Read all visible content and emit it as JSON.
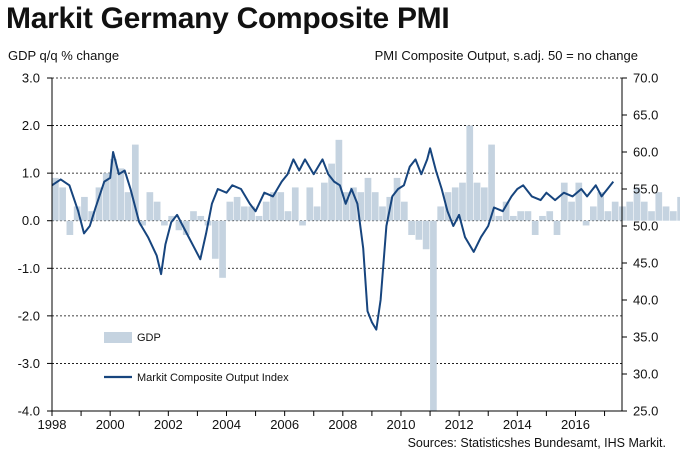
{
  "chart_data": {
    "type": "bar+line",
    "title": "Markit Germany Composite PMI",
    "ylabel_left": "GDP q/q % change",
    "ylabel_right": "PMI Composite  Output, s.adj. 50 = no change",
    "source": "Sources: Statisticshes Bundesamt, IHS Markit.",
    "xlim": [
      1998,
      2017.6
    ],
    "ylim_left": [
      -4.0,
      3.0
    ],
    "ylim_right": [
      25.0,
      70.0
    ],
    "x_ticks": [
      "1998",
      "2000",
      "2002",
      "2004",
      "2006",
      "2008",
      "2010",
      "2012",
      "2014",
      "2016"
    ],
    "y_ticks_left": [
      "3.0",
      "2.0",
      "1.0",
      "0.0",
      "-1.0",
      "-2.0",
      "-3.0",
      "-4.0"
    ],
    "y_ticks_right": [
      "70.0",
      "65.0",
      "60.0",
      "55.0",
      "50.0",
      "45.0",
      "40.0",
      "35.0",
      "30.0",
      "25.0"
    ],
    "grid": "horizontal dashed",
    "legend_position": "bottom-left",
    "colors": {
      "gdp_bar": "#c5d3e0",
      "pmi_line": "#17457e",
      "axis": "#000000"
    },
    "series": [
      {
        "name": "GDP",
        "kind": "bar",
        "axis": "left",
        "x_start": 1998.0,
        "step": 0.25,
        "values": [
          0.9,
          0.7,
          -0.3,
          0.3,
          0.5,
          0.2,
          0.7,
          1.0,
          1.3,
          1.1,
          0.6,
          1.6,
          -0.1,
          0.6,
          0.4,
          -0.1,
          0.1,
          -0.2,
          -0.3,
          0.2,
          0.1,
          -0.1,
          -0.8,
          -1.2,
          0.4,
          0.5,
          0.3,
          0.3,
          0.1,
          0.4,
          0.6,
          0.6,
          0.2,
          0.7,
          -0.1,
          0.7,
          0.3,
          0.8,
          1.2,
          1.7,
          0.6,
          0.7,
          0.6,
          0.9,
          0.6,
          0.3,
          0.5,
          0.9,
          0.4,
          -0.3,
          -0.4,
          -0.6,
          -4.0,
          0.3,
          0.6,
          0.7,
          0.8,
          2.0,
          0.8,
          0.7,
          1.6,
          0.1,
          0.4,
          0.1,
          0.2,
          0.2,
          -0.3,
          0.1,
          0.2,
          -0.3,
          0.8,
          0.4,
          0.8,
          -0.1,
          0.3,
          0.6,
          0.2,
          0.4,
          0.3,
          0.4,
          0.7,
          0.4,
          0.2,
          0.6,
          0.3,
          0.2,
          0.5,
          0.4
        ]
      },
      {
        "name": "Markit Composite Output Index",
        "kind": "line",
        "axis": "right",
        "x": [
          1998.0,
          1998.3,
          1998.6,
          1998.9,
          1999.1,
          1999.3,
          1999.5,
          1999.8,
          2000.0,
          2000.1,
          2000.3,
          2000.5,
          2000.7,
          2001.0,
          2001.3,
          2001.6,
          2001.75,
          2001.9,
          2002.1,
          2002.3,
          2002.5,
          2002.7,
          2002.9,
          2003.1,
          2003.3,
          2003.5,
          2003.7,
          2004.0,
          2004.2,
          2004.5,
          2004.8,
          2005.0,
          2005.3,
          2005.6,
          2005.9,
          2006.1,
          2006.3,
          2006.5,
          2006.7,
          2007.0,
          2007.3,
          2007.5,
          2007.7,
          2007.9,
          2008.1,
          2008.3,
          2008.5,
          2008.7,
          2008.85,
          2009.0,
          2009.15,
          2009.3,
          2009.5,
          2009.7,
          2009.9,
          2010.1,
          2010.3,
          2010.5,
          2010.7,
          2010.9,
          2011.0,
          2011.2,
          2011.4,
          2011.6,
          2011.8,
          2012.0,
          2012.2,
          2012.5,
          2012.75,
          2013.0,
          2013.2,
          2013.5,
          2013.8,
          2014.0,
          2014.2,
          2014.5,
          2014.8,
          2015.0,
          2015.3,
          2015.6,
          2015.9,
          2016.2,
          2016.4,
          2016.7,
          2016.9,
          2017.1,
          2017.3
        ],
        "values": [
          55.5,
          56.3,
          55.5,
          52.0,
          49.0,
          50.0,
          52.5,
          56.0,
          56.5,
          60.0,
          57.0,
          57.5,
          55.0,
          50.5,
          48.5,
          46.0,
          43.5,
          47.5,
          50.5,
          51.5,
          50.0,
          48.5,
          47.0,
          45.5,
          49.0,
          53.0,
          55.0,
          54.5,
          55.5,
          55.0,
          53.0,
          52.0,
          54.5,
          54.0,
          56.0,
          57.0,
          59.0,
          57.5,
          59.0,
          57.0,
          59.0,
          57.0,
          56.0,
          55.5,
          53.0,
          55.0,
          53.0,
          47.0,
          38.5,
          37.0,
          36.0,
          40.0,
          50.0,
          54.0,
          55.0,
          55.5,
          58.0,
          59.0,
          57.0,
          59.0,
          60.5,
          57.5,
          55.0,
          52.0,
          50.0,
          51.5,
          48.5,
          46.5,
          48.5,
          50.0,
          52.5,
          52.0,
          54.0,
          55.0,
          55.5,
          54.0,
          53.5,
          54.5,
          53.5,
          54.5,
          54.0,
          55.0,
          54.0,
          55.5,
          54.0,
          55.0,
          56.0
        ]
      }
    ]
  }
}
